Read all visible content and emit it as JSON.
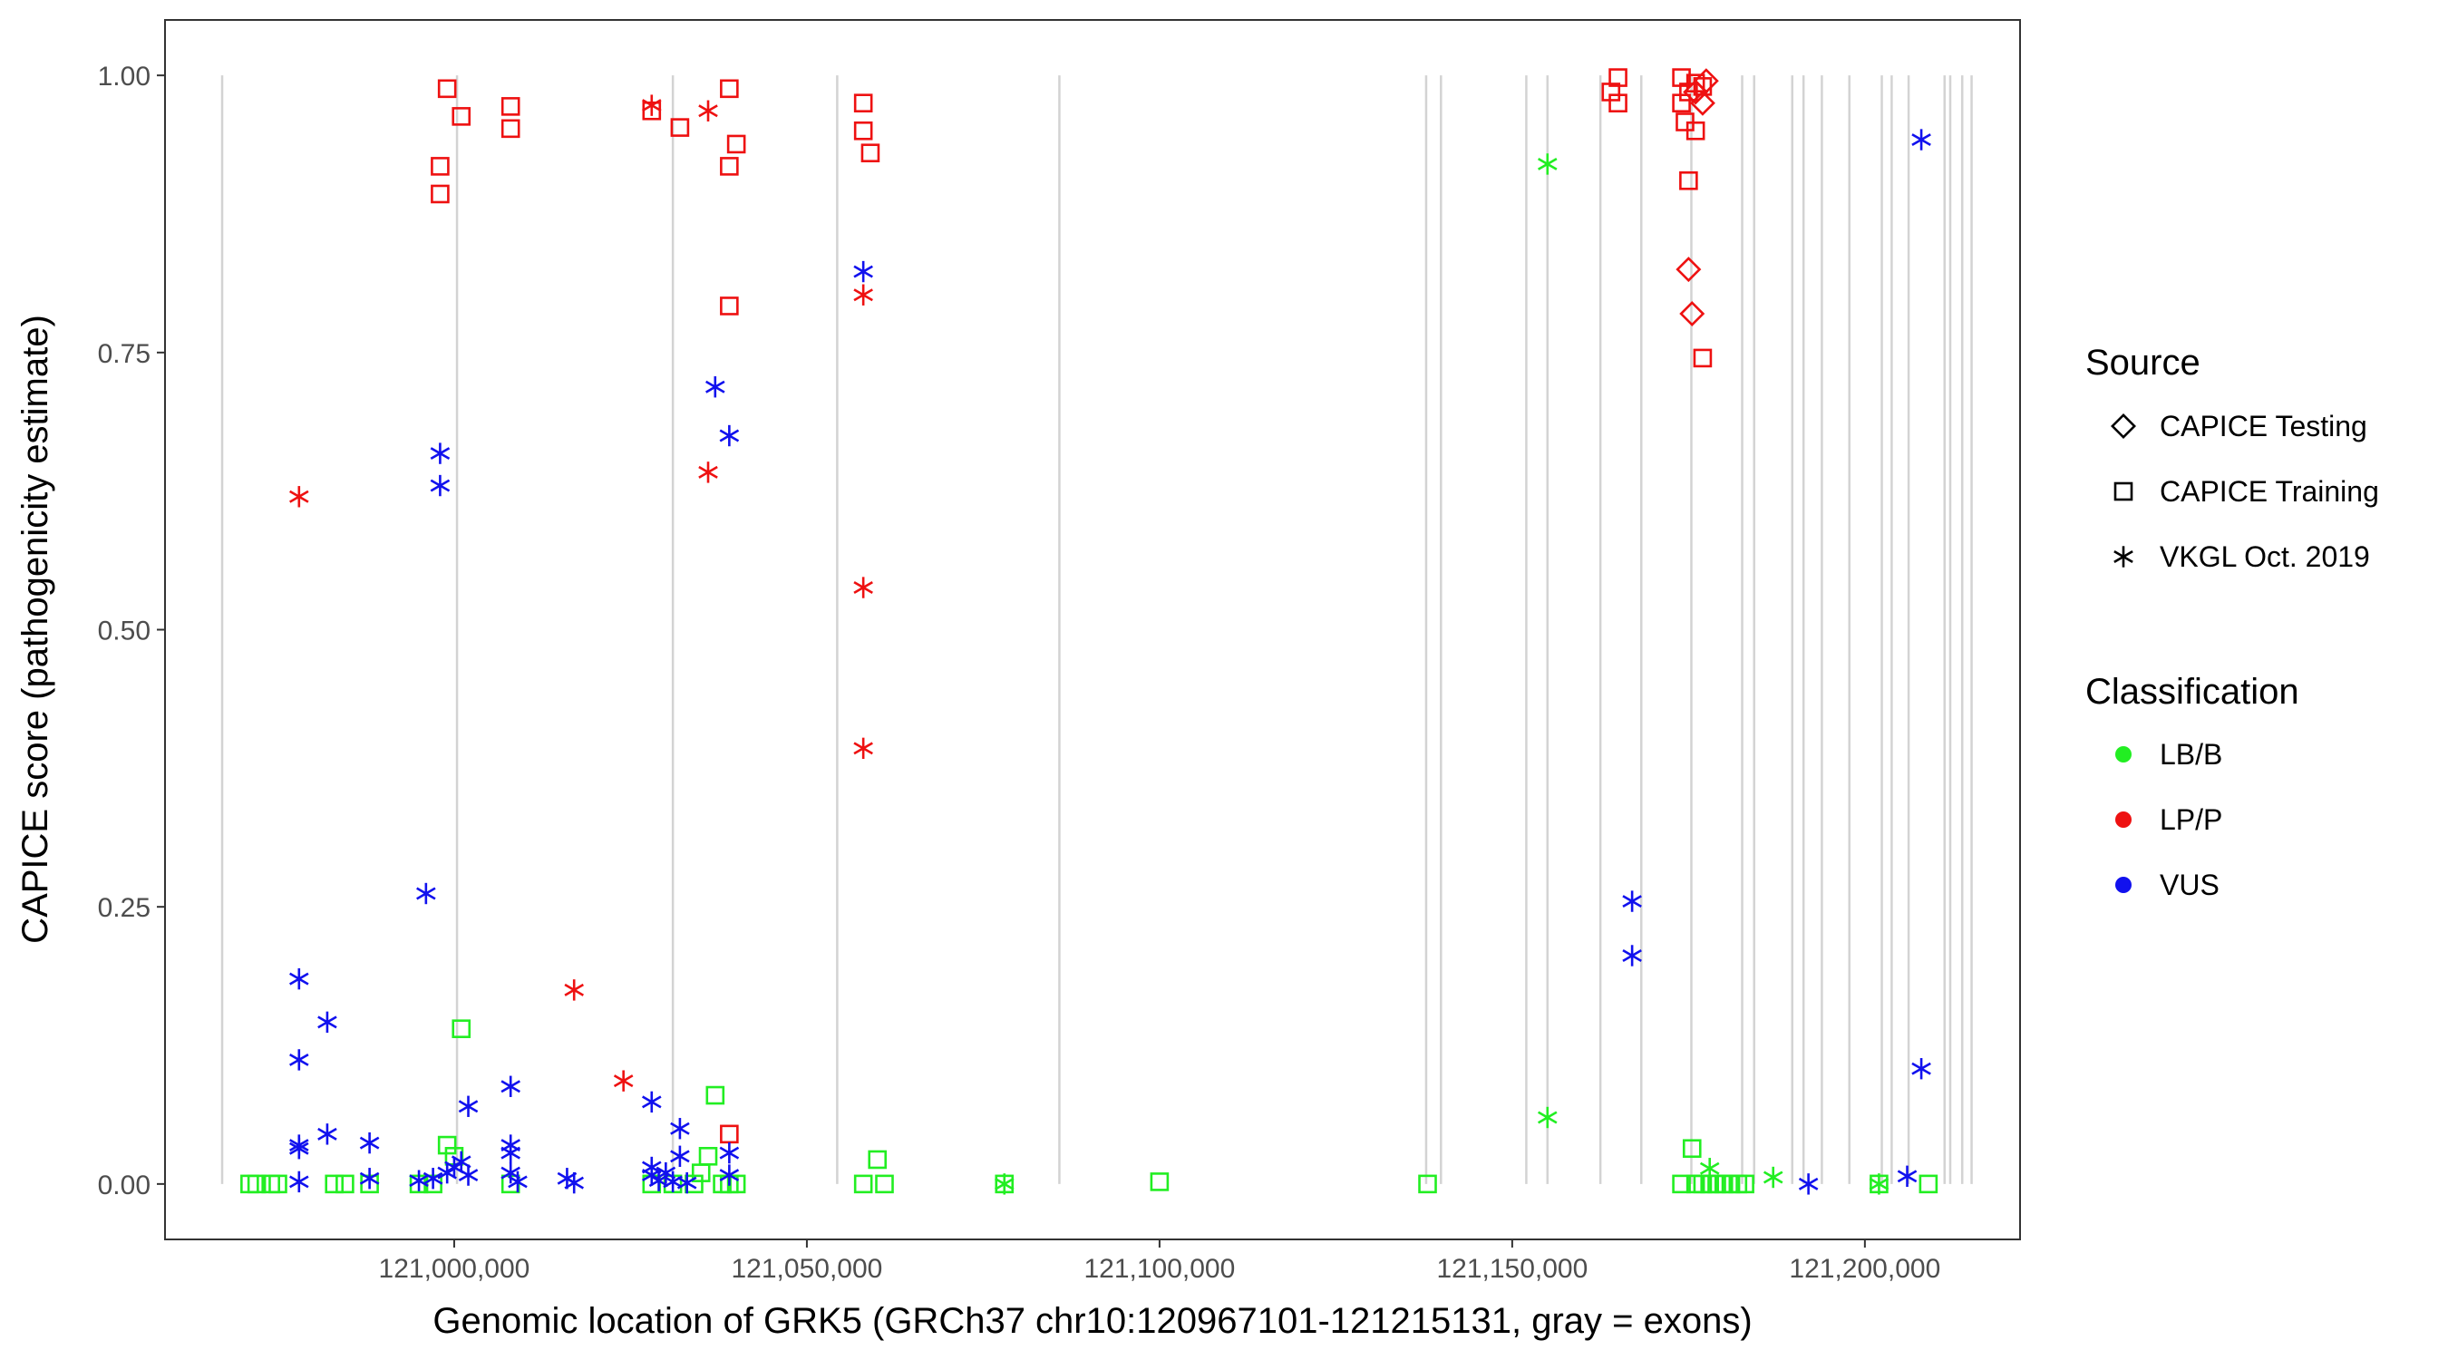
{
  "chart_data": {
    "type": "scatter",
    "xlabel": "Genomic location of GRK5 (GRCh37 chr10:120967101-121215131, gray = exons)",
    "ylabel": "CAPICE score (pathogenicity estimate)",
    "xlim": [
      120959000,
      121222000
    ],
    "ylim": [
      -0.05,
      1.05
    ],
    "x_ticks": [
      121000000,
      121050000,
      121100000,
      121150000,
      121200000
    ],
    "x_tick_labels": [
      "121,000,000",
      "121,050,000",
      "121,100,000",
      "121,150,000",
      "121,200,000"
    ],
    "y_ticks": [
      0,
      0.25,
      0.5,
      0.75,
      1.0
    ],
    "y_tick_labels": [
      "0.00",
      "0.25",
      "0.50",
      "0.75",
      "1.00"
    ],
    "grid": false,
    "legend_placement": "right",
    "exons": [
      120967101,
      121000400,
      121031000,
      121054300,
      121085800,
      121137800,
      121139900,
      121152000,
      121155000,
      121162500,
      121168300,
      121175400,
      121182600,
      121184300,
      121189700,
      121191300,
      121193900,
      121197800,
      121202400,
      121203800,
      121206200,
      121211300,
      121212100,
      121213800,
      121215131
    ],
    "legend": {
      "source_title": "Source",
      "sources": [
        {
          "label": "CAPICE Testing",
          "shape": "diamond"
        },
        {
          "label": "CAPICE Training",
          "shape": "square"
        },
        {
          "label": "VKGL Oct. 2019",
          "shape": "asterisk"
        }
      ],
      "classification_title": "Classification",
      "classes": [
        {
          "label": "LB/B",
          "color": "#22ee22"
        },
        {
          "label": "LP/P",
          "color": "#ee1111"
        },
        {
          "label": "VUS",
          "color": "#1111ee"
        }
      ]
    },
    "series": [
      {
        "name": "CAPICE Training",
        "shape": "square",
        "color": "#22ee22",
        "points": [
          [
            120971000,
            0.0
          ],
          [
            120972000,
            0.0
          ],
          [
            120974000,
            0.0
          ],
          [
            120975000,
            0.0
          ],
          [
            120983000,
            0.0
          ],
          [
            120984500,
            0.0
          ],
          [
            120988000,
            0.0
          ],
          [
            120995000,
            0.0
          ],
          [
            120997000,
            0.0
          ],
          [
            120999000,
            0.035
          ],
          [
            121000000,
            0.025
          ],
          [
            121001000,
            0.14
          ],
          [
            121008000,
            0.0
          ],
          [
            121028000,
            0.0
          ],
          [
            121031000,
            0.0
          ],
          [
            121034000,
            0.0
          ],
          [
            121035000,
            0.01
          ],
          [
            121036000,
            0.025
          ],
          [
            121037000,
            0.08
          ],
          [
            121038000,
            0.0
          ],
          [
            121039000,
            0.0
          ],
          [
            121040000,
            0.0
          ],
          [
            121058000,
            0.0
          ],
          [
            121060000,
            0.022
          ],
          [
            121061000,
            0.0
          ],
          [
            121078000,
            0.0
          ],
          [
            121100000,
            0.002
          ],
          [
            121138000,
            0.0
          ],
          [
            121174000,
            0.0
          ],
          [
            121175500,
            0.032
          ],
          [
            121176000,
            0.0
          ],
          [
            121177000,
            0.0
          ],
          [
            121178000,
            0.0
          ],
          [
            121179000,
            0.0
          ],
          [
            121180000,
            0.0
          ],
          [
            121181000,
            0.0
          ],
          [
            121182000,
            0.0
          ],
          [
            121183000,
            0.0
          ],
          [
            121202000,
            0.0
          ],
          [
            121209000,
            0.0
          ]
        ]
      },
      {
        "name": "CAPICE Training",
        "shape": "square",
        "color": "#ee1111",
        "points": [
          [
            120998000,
            0.893
          ],
          [
            120998000,
            0.918
          ],
          [
            120999000,
            0.988
          ],
          [
            121001000,
            0.963
          ],
          [
            121008000,
            0.952
          ],
          [
            121008000,
            0.972
          ],
          [
            121028000,
            0.968
          ],
          [
            121032000,
            0.953
          ],
          [
            121039000,
            0.988
          ],
          [
            121039000,
            0.918
          ],
          [
            121040000,
            0.938
          ],
          [
            121039000,
            0.792
          ],
          [
            121039000,
            0.045
          ],
          [
            121058000,
            0.975
          ],
          [
            121058000,
            0.95
          ],
          [
            121059000,
            0.93
          ],
          [
            121164000,
            0.985
          ],
          [
            121165000,
            0.998
          ],
          [
            121165000,
            0.975
          ],
          [
            121174000,
            0.998
          ],
          [
            121175000,
            0.985
          ],
          [
            121176000,
            0.993
          ],
          [
            121177000,
            0.99
          ],
          [
            121174500,
            0.958
          ],
          [
            121175000,
            0.905
          ],
          [
            121176000,
            0.95
          ],
          [
            121177000,
            0.745
          ],
          [
            121174000,
            0.975
          ]
        ]
      },
      {
        "name": "CAPICE Testing",
        "shape": "diamond",
        "color": "#ee1111",
        "points": [
          [
            121175000,
            0.825
          ],
          [
            121175500,
            0.785
          ],
          [
            121177000,
            0.975
          ],
          [
            121176000,
            0.985
          ],
          [
            121177500,
            0.995
          ]
        ]
      },
      {
        "name": "VKGL Oct. 2019",
        "shape": "asterisk",
        "color": "#22ee22",
        "points": [
          [
            121078000,
            0.0
          ],
          [
            121155000,
            0.92
          ],
          [
            121155000,
            0.06
          ],
          [
            121178000,
            0.014
          ],
          [
            121187000,
            0.006
          ],
          [
            121202000,
            0.0
          ]
        ]
      },
      {
        "name": "VKGL Oct. 2019",
        "shape": "asterisk",
        "color": "#ee1111",
        "points": [
          [
            120978000,
            0.62
          ],
          [
            121017000,
            0.175
          ],
          [
            121024000,
            0.093
          ],
          [
            121028000,
            0.973
          ],
          [
            121036000,
            0.968
          ],
          [
            121036000,
            0.642
          ],
          [
            121058000,
            0.802
          ],
          [
            121058000,
            0.538
          ],
          [
            121058000,
            0.393
          ]
        ]
      },
      {
        "name": "VKGL Oct. 2019",
        "shape": "asterisk",
        "color": "#1111ee",
        "points": [
          [
            120978000,
            0.185
          ],
          [
            120978000,
            0.112
          ],
          [
            120978000,
            0.035
          ],
          [
            120978000,
            0.032
          ],
          [
            120978000,
            0.002
          ],
          [
            120982000,
            0.146
          ],
          [
            120982000,
            0.045
          ],
          [
            120988000,
            0.037
          ],
          [
            120988000,
            0.005
          ],
          [
            120996000,
            0.262
          ],
          [
            120998000,
            0.659
          ],
          [
            120998000,
            0.63
          ],
          [
            120995000,
            0.003
          ],
          [
            120997000,
            0.005
          ],
          [
            120999000,
            0.01
          ],
          [
            121000000,
            0.015
          ],
          [
            121001000,
            0.02
          ],
          [
            121002000,
            0.008
          ],
          [
            121002000,
            0.07
          ],
          [
            121008000,
            0.088
          ],
          [
            121008000,
            0.035
          ],
          [
            121008000,
            0.028
          ],
          [
            121008000,
            0.01
          ],
          [
            121009000,
            0.002
          ],
          [
            121016000,
            0.005
          ],
          [
            121017000,
            0.001
          ],
          [
            121028000,
            0.074
          ],
          [
            121028000,
            0.015
          ],
          [
            121028000,
            0.008
          ],
          [
            121029000,
            0.003
          ],
          [
            121030000,
            0.01
          ],
          [
            121031000,
            0.002
          ],
          [
            121032000,
            0.05
          ],
          [
            121032000,
            0.025
          ],
          [
            121033000,
            0.001
          ],
          [
            121037000,
            0.719
          ],
          [
            121039000,
            0.675
          ],
          [
            121039000,
            0.028
          ],
          [
            121039000,
            0.008
          ],
          [
            121058000,
            0.823
          ],
          [
            121167000,
            0.255
          ],
          [
            121167000,
            0.206
          ],
          [
            121192000,
            0.0
          ],
          [
            121206000,
            0.007
          ],
          [
            121208000,
            0.942
          ],
          [
            121208000,
            0.104
          ]
        ]
      }
    ]
  }
}
